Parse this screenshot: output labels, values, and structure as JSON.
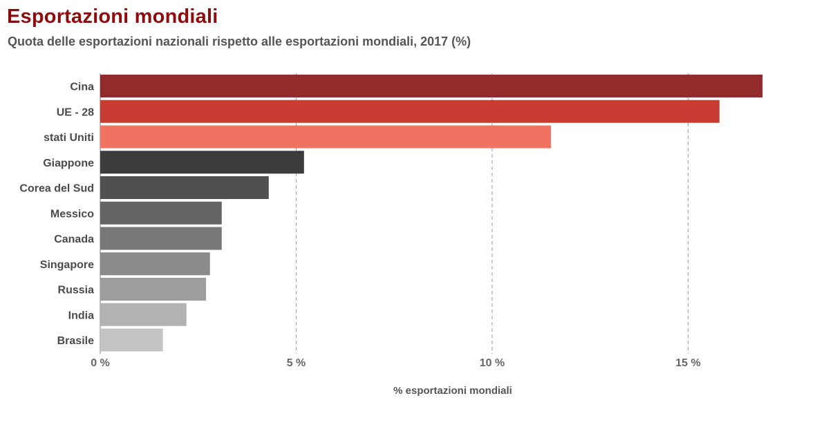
{
  "chart_data": {
    "type": "bar",
    "orientation": "horizontal",
    "title": "Esportazioni mondiali",
    "subtitle": "Quota delle esportazioni nazionali rispetto alle esportazioni mondiali, 2017 (%)",
    "xlabel": "% esportazioni mondiali",
    "ylabel": "",
    "xlim": [
      0,
      18
    ],
    "xticks": [
      0,
      5,
      10,
      15
    ],
    "xtick_labels": [
      "0 %",
      "5 %",
      "10 %",
      "15 %"
    ],
    "grid": "vertical dashed",
    "categories": [
      "Cina",
      "UE - 28",
      "stati Uniti",
      "Giappone",
      "Corea del Sud",
      "Messico",
      "Canada",
      "Singapore",
      "Russia",
      "India",
      "Brasile"
    ],
    "values": [
      16.9,
      15.8,
      11.5,
      5.2,
      4.3,
      3.1,
      3.1,
      2.8,
      2.7,
      2.2,
      1.6
    ],
    "colors": [
      "#922b2b",
      "#c83c34",
      "#ef7360",
      "#3c3c3c",
      "#505050",
      "#656565",
      "#777777",
      "#8a8a8a",
      "#9d9d9d",
      "#b2b2b2",
      "#c4c4c4"
    ]
  }
}
